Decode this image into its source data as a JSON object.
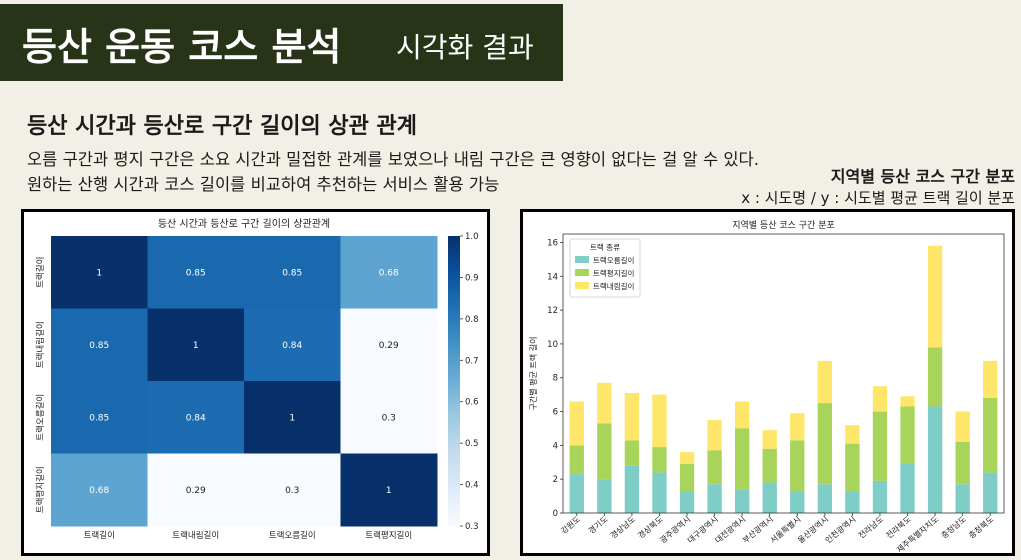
{
  "header": {
    "title": "등산 운동 코스 분석",
    "subtitle": "시각화 결과"
  },
  "section": {
    "title": "등산 시간과 등산로 구간 길이의 상관 관계",
    "desc1": "오름 구간과 평지 구간은 소요 시간과 밀접한 관계를 보였으나 내림 구간은 큰 영향이 없다는 걸 알 수 있다.",
    "desc2": "원하는 산행 시간과 코스 길이를 비교하여 추천하는 서비스 활용 가능"
  },
  "right_info": {
    "title": "지역별 등산 코스 구간 분포",
    "subtitle": "x : 시도명 / y :  시도별 평균 트랙 길이 분포"
  },
  "colors": {
    "banner_bg": "#273418",
    "page_bg": "#f2f0e6",
    "series_up": "#7ecdc6",
    "series_flat": "#a9d45c",
    "series_down": "#fde66a"
  },
  "chart_data": [
    {
      "type": "heatmap",
      "title": "등산 시간과 등산로 구간 길이의 상관관계",
      "rows": [
        "트랙길이",
        "트랙내림길이",
        "트랙오름길이",
        "트랙평지길이"
      ],
      "columns": [
        "트랙길이",
        "트랙내림길이",
        "트랙오름길이",
        "트랙평지길이"
      ],
      "values": [
        [
          1,
          0.85,
          0.85,
          0.68
        ],
        [
          0.85,
          1,
          0.84,
          0.29
        ],
        [
          0.85,
          0.84,
          1,
          0.3
        ],
        [
          0.68,
          0.29,
          0.3,
          1
        ]
      ],
      "colorbar": {
        "range": [
          0.3,
          1.0
        ],
        "ticks": [
          "0.3",
          "0.4",
          "0.5",
          "0.6",
          "0.7",
          "0.8",
          "0.9",
          "1.0"
        ]
      },
      "colormap": "Blues"
    },
    {
      "type": "bar",
      "stacked": true,
      "title": "지역별 등산 코스 구간 분포",
      "ylabel": "구간별 평균 트랙 길이",
      "xlabel": "",
      "ylim": [
        0,
        16.5
      ],
      "yticks": [
        0,
        2,
        4,
        6,
        8,
        10,
        12,
        14,
        16
      ],
      "grid": false,
      "legend": {
        "title": "트랙 종류",
        "placement": "top-left"
      },
      "categories": [
        "강원도",
        "경기도",
        "경상남도",
        "경상북도",
        "광주광역시",
        "대구광역시",
        "대전광역시",
        "부산광역시",
        "서울특별시",
        "울산광역시",
        "인천광역시",
        "전라남도",
        "전라북도",
        "제주특별자치도",
        "충청남도",
        "충청북도"
      ],
      "series": [
        {
          "name": "트랙오름길이",
          "color": "#7ecdc6",
          "values": [
            2.3,
            2.0,
            2.8,
            2.4,
            1.3,
            1.7,
            1.4,
            1.8,
            1.3,
            1.7,
            1.3,
            1.9,
            2.9,
            6.3,
            1.7,
            2.4
          ]
        },
        {
          "name": "트랙평지길이",
          "color": "#a9d45c",
          "values": [
            1.7,
            3.3,
            1.5,
            1.5,
            1.6,
            2.0,
            3.6,
            2.0,
            3.0,
            4.8,
            2.8,
            4.1,
            3.4,
            3.5,
            2.5,
            4.4
          ]
        },
        {
          "name": "트랙내림길이",
          "color": "#fde66a",
          "values": [
            2.6,
            2.4,
            2.8,
            3.1,
            0.7,
            1.8,
            1.6,
            1.1,
            1.6,
            2.5,
            1.1,
            1.5,
            0.6,
            6.0,
            1.8,
            2.2
          ]
        }
      ]
    }
  ]
}
